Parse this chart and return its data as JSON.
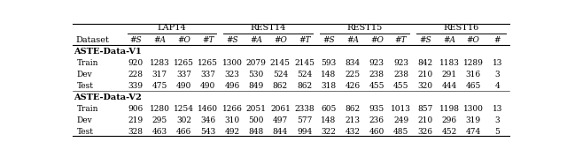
{
  "col_groups": [
    {
      "label": "LAP14",
      "cols": [
        "#S",
        "#A",
        "#O",
        "#T"
      ]
    },
    {
      "label": "REST14",
      "cols": [
        "#S",
        "#A",
        "#O",
        "#T"
      ]
    },
    {
      "label": "REST15",
      "cols": [
        "#S",
        "#A",
        "#O",
        "#T"
      ]
    },
    {
      "label": "REST16",
      "cols": [
        "#S",
        "#A",
        "#O",
        "#"
      ]
    }
  ],
  "row_groups": [
    {
      "header": "ASTE-Data-V1",
      "rows": [
        {
          "label": "Train",
          "values": [
            "920",
            "1283",
            "1265",
            "1265",
            "1300",
            "2079",
            "2145",
            "2145",
            "593",
            "834",
            "923",
            "923",
            "842",
            "1183",
            "1289",
            "13"
          ]
        },
        {
          "label": "Dev",
          "values": [
            "228",
            "317",
            "337",
            "337",
            "323",
            "530",
            "524",
            "524",
            "148",
            "225",
            "238",
            "238",
            "210",
            "291",
            "316",
            "3"
          ]
        },
        {
          "label": "Test",
          "values": [
            "339",
            "475",
            "490",
            "490",
            "496",
            "849",
            "862",
            "862",
            "318",
            "426",
            "455",
            "455",
            "320",
            "444",
            "465",
            "4"
          ]
        }
      ]
    },
    {
      "header": "ASTE-Data-V2",
      "rows": [
        {
          "label": "Train",
          "values": [
            "906",
            "1280",
            "1254",
            "1460",
            "1266",
            "2051",
            "2061",
            "2338",
            "605",
            "862",
            "935",
            "1013",
            "857",
            "1198",
            "1300",
            "13"
          ]
        },
        {
          "label": "Dev",
          "values": [
            "219",
            "295",
            "302",
            "346",
            "310",
            "500",
            "497",
            "577",
            "148",
            "213",
            "236",
            "249",
            "210",
            "296",
            "319",
            "3"
          ]
        },
        {
          "label": "Test",
          "values": [
            "328",
            "463",
            "466",
            "543",
            "492",
            "848",
            "844",
            "994",
            "322",
            "432",
            "460",
            "485",
            "326",
            "452",
            "474",
            "5"
          ]
        }
      ]
    }
  ],
  "dataset_col_label": "Dataset",
  "font_size": 6.5,
  "header_font_size": 7.0,
  "group_header_font_size": 7.0,
  "line_color": "#000000"
}
